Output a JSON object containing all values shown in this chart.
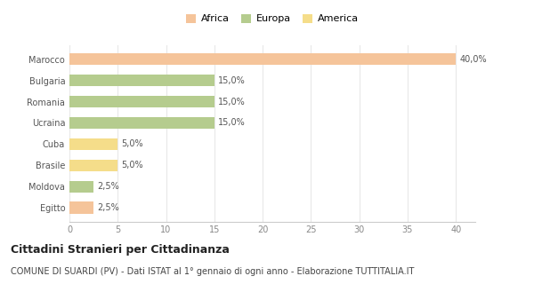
{
  "categories": [
    "Marocco",
    "Bulgaria",
    "Romania",
    "Ucraina",
    "Cuba",
    "Brasile",
    "Moldova",
    "Egitto"
  ],
  "values": [
    40.0,
    15.0,
    15.0,
    15.0,
    5.0,
    5.0,
    2.5,
    2.5
  ],
  "colors": [
    "#f5c49a",
    "#b5cc8e",
    "#b5cc8e",
    "#b5cc8e",
    "#f5dd8a",
    "#f5dd8a",
    "#b5cc8e",
    "#f5c49a"
  ],
  "bar_labels": [
    "40,0%",
    "15,0%",
    "15,0%",
    "15,0%",
    "5,0%",
    "5,0%",
    "2,5%",
    "2,5%"
  ],
  "xlim": [
    0,
    42
  ],
  "xticks": [
    0,
    5,
    10,
    15,
    20,
    25,
    30,
    35,
    40
  ],
  "legend_labels": [
    "Africa",
    "Europa",
    "America"
  ],
  "legend_colors": [
    "#f5c49a",
    "#b5cc8e",
    "#f5dd8a"
  ],
  "title": "Cittadini Stranieri per Cittadinanza",
  "subtitle": "COMUNE DI SUARDI (PV) - Dati ISTAT al 1° gennaio di ogni anno - Elaborazione TUTTITALIA.IT",
  "background_color": "#ffffff",
  "grid_color": "#e8e8e8",
  "title_fontsize": 9,
  "subtitle_fontsize": 7,
  "label_fontsize": 7,
  "tick_fontsize": 7,
  "yticklabel_fontsize": 7
}
